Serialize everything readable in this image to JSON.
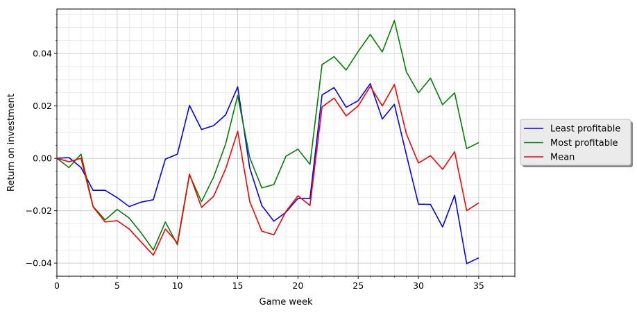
{
  "chart_data": {
    "type": "line",
    "title": "",
    "xlabel": "Game week",
    "ylabel": "Return on investment",
    "xlim": [
      0,
      38
    ],
    "ylim": [
      -0.045,
      0.057
    ],
    "xticks": [
      0,
      5,
      10,
      15,
      20,
      25,
      30,
      35
    ],
    "xtick_labels": [
      "0",
      "5",
      "10",
      "15",
      "20",
      "25",
      "30",
      "35"
    ],
    "yticks": [
      -0.04,
      -0.02,
      0.0,
      0.02,
      0.04
    ],
    "ytick_labels": [
      "−0.04",
      "−0.02",
      "0.00",
      "0.02",
      "0.04"
    ],
    "grid": true,
    "legend_position": "right, outside plot",
    "x": [
      0,
      1,
      2,
      3,
      4,
      5,
      6,
      7,
      8,
      9,
      10,
      11,
      12,
      13,
      14,
      15,
      16,
      17,
      18,
      19,
      20,
      21,
      22,
      23,
      24,
      25,
      26,
      27,
      28,
      29,
      30,
      31,
      32,
      33,
      34,
      35
    ],
    "series": [
      {
        "name": "Least profitable",
        "color": "#0000ff",
        "values": [
          0.0,
          0.0003,
          -0.0035,
          -0.0122,
          -0.0122,
          -0.015,
          -0.0184,
          -0.0167,
          -0.0158,
          -0.0003,
          0.0016,
          0.0202,
          0.011,
          0.0125,
          0.0166,
          0.0273,
          -0.0037,
          -0.018,
          -0.024,
          -0.0206,
          -0.0153,
          -0.0153,
          0.0242,
          0.027,
          0.0195,
          0.022,
          0.0285,
          0.015,
          0.0206,
          0.0013,
          -0.0175,
          -0.0176,
          -0.0262,
          -0.0141,
          -0.0402,
          -0.038
        ]
      },
      {
        "name": "Most profitable",
        "color": "#008000",
        "values": [
          0.0,
          -0.0035,
          0.0016,
          -0.0183,
          -0.0235,
          -0.0195,
          -0.0228,
          -0.0285,
          -0.035,
          -0.0243,
          -0.033,
          -0.0063,
          -0.0165,
          -0.0072,
          0.0055,
          0.024,
          0.0003,
          -0.0113,
          -0.01,
          0.0008,
          0.0035,
          -0.0023,
          0.0358,
          0.0388,
          0.0337,
          0.0408,
          0.0473,
          0.0406,
          0.0526,
          0.033,
          0.025,
          0.0306,
          0.0205,
          0.025,
          0.0037,
          0.006
        ]
      },
      {
        "name": "Mean",
        "color": "#ff0000",
        "values": [
          0.0,
          -0.0013,
          0.0,
          -0.0185,
          -0.0243,
          -0.0238,
          -0.027,
          -0.032,
          -0.037,
          -0.027,
          -0.0323,
          -0.006,
          -0.0187,
          -0.0145,
          -0.004,
          0.0103,
          -0.0165,
          -0.0278,
          -0.0292,
          -0.0203,
          -0.0143,
          -0.018,
          0.0196,
          0.023,
          0.0162,
          0.02,
          0.0275,
          0.02,
          0.0282,
          0.0093,
          -0.0018,
          0.001,
          -0.0042,
          0.0025,
          -0.02,
          -0.017
        ]
      }
    ]
  }
}
